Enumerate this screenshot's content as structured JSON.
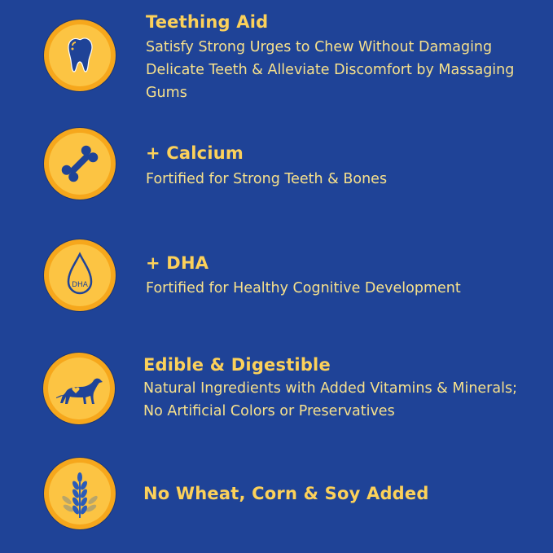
{
  "colors": {
    "background": "#1f4397",
    "badge_outer": "#f6a71c",
    "badge_inner": "#fcc443",
    "title": "#fcd15a",
    "body": "#f7e18c"
  },
  "features": [
    {
      "icon": "tooth-icon",
      "title": "Teething Aid",
      "lines": [
        "Satisfy Strong Urges to Chew Without Damaging",
        "Delicate Teeth & Alleviate Discomfort by Massaging",
        "Gums"
      ]
    },
    {
      "icon": "bone-icon",
      "title": "+ Calcium",
      "lines": [
        "Fortified for Strong Teeth & Bones"
      ]
    },
    {
      "icon": "dha-drop-icon",
      "icon_text": "DHA",
      "title": "+ DHA",
      "lines": [
        "Fortified for Healthy Cognitive Development"
      ]
    },
    {
      "icon": "dog-heart-icon",
      "title": "Edible & Digestible",
      "lines": [
        "Natural Ingredients with Added Vitamins & Minerals;",
        "No Artificial Colors or Preservatives"
      ]
    },
    {
      "icon": "wheat-icon",
      "title": "No Wheat, Corn & Soy Added",
      "lines": []
    }
  ]
}
